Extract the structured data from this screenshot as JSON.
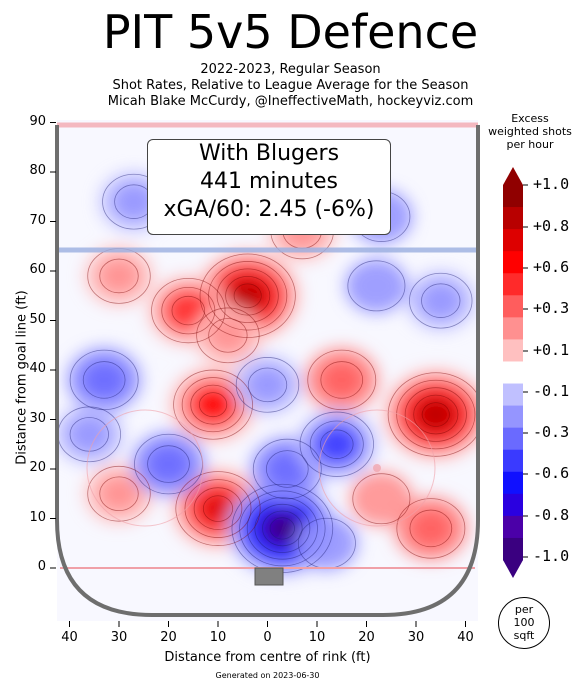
{
  "title": "PIT 5v5 Defence",
  "subtitle_lines": [
    "2022-2023, Regular Season",
    "Shot Rates, Relative to League Average for the Season",
    "Micah Blake McCurdy, @IneffectiveMath, hockeyviz.com"
  ],
  "info_box": {
    "line1": "With Blugers",
    "line2": "441 minutes",
    "line3": "xGA/60: 2.45 (-6%)"
  },
  "colorbar": {
    "title_lines": [
      "Excess",
      "weighted shots",
      "per hour"
    ],
    "tick_labels": [
      "+1.0",
      "+0.8",
      "+0.6",
      "+0.3",
      "+0.1",
      "-0.1",
      "-0.3",
      "-0.6",
      "-0.8",
      "-1.0"
    ],
    "unit_lines": [
      "per",
      "100",
      "sqft"
    ],
    "colors": [
      "#3a0080",
      "#4b00a8",
      "#2a00e0",
      "#1010ff",
      "#3a3aff",
      "#6a6aff",
      "#9595ff",
      "#c0c0ff",
      "#ffffff",
      "#ffc0c0",
      "#ff9090",
      "#ff5d5d",
      "#ff2a2a",
      "#ff0000",
      "#dd0000",
      "#b80000",
      "#900000"
    ]
  },
  "generated": "Generated on 2023-06-30",
  "chart_data": {
    "type": "heatmap",
    "title": "PIT 5v5 Defence",
    "xlabel": "Distance from centre of rink (ft)",
    "ylabel": "Distance from goal line (ft)",
    "xlim": [
      -42.5,
      42.5
    ],
    "ylim": [
      -11,
      90
    ],
    "x_ticks": [
      "40",
      "30",
      "20",
      "10",
      "0",
      "10",
      "20",
      "30",
      "40"
    ],
    "x_tick_values": [
      -40,
      -30,
      -20,
      -10,
      0,
      10,
      20,
      30,
      40
    ],
    "y_ticks": [
      "0",
      "10",
      "20",
      "30",
      "40",
      "50",
      "60",
      "70",
      "80",
      "90"
    ],
    "y_tick_values": [
      0,
      10,
      20,
      30,
      40,
      50,
      60,
      70,
      80,
      90
    ],
    "color_range": [
      -1.0,
      1.0
    ],
    "blobs": [
      {
        "x": -4,
        "y": 55,
        "value": 0.9
      },
      {
        "x": -16,
        "y": 52,
        "value": 0.5
      },
      {
        "x": -8,
        "y": 47,
        "value": 0.3
      },
      {
        "x": -30,
        "y": 59,
        "value": 0.3
      },
      {
        "x": 34,
        "y": 31,
        "value": 0.9
      },
      {
        "x": 15,
        "y": 38,
        "value": 0.4
      },
      {
        "x": -11,
        "y": 33,
        "value": 0.6
      },
      {
        "x": -10,
        "y": 12,
        "value": 0.7
      },
      {
        "x": 33,
        "y": 8,
        "value": 0.4
      },
      {
        "x": -30,
        "y": 15,
        "value": 0.3
      },
      {
        "x": 7,
        "y": 68,
        "value": 0.3
      },
      {
        "x": 23,
        "y": 14,
        "value": 0.2
      },
      {
        "x": 3,
        "y": 8,
        "value": -1.0
      },
      {
        "x": 4,
        "y": 20,
        "value": -0.4
      },
      {
        "x": 14,
        "y": 25,
        "value": -0.5
      },
      {
        "x": -33,
        "y": 38,
        "value": -0.4
      },
      {
        "x": -20,
        "y": 21,
        "value": -0.4
      },
      {
        "x": -36,
        "y": 27,
        "value": -0.3
      },
      {
        "x": -27,
        "y": 74,
        "value": -0.3
      },
      {
        "x": 0,
        "y": 37,
        "value": -0.3
      },
      {
        "x": 35,
        "y": 54,
        "value": -0.3
      },
      {
        "x": 22,
        "y": 57,
        "value": -0.2
      },
      {
        "x": 23,
        "y": 71,
        "value": -0.2
      },
      {
        "x": 12,
        "y": 5,
        "value": -0.2
      }
    ]
  }
}
